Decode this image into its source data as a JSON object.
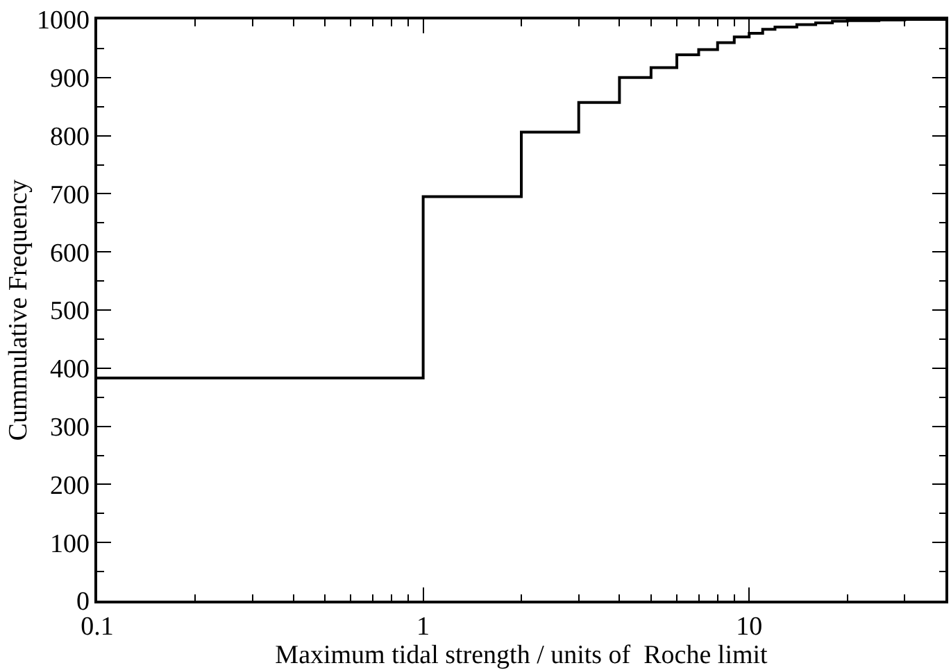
{
  "chart_data": {
    "type": "step",
    "xlabel": "Maximum tidal strength / units of  Roche limit",
    "ylabel": "Cummulative Frequency",
    "x": [
      0.1,
      1,
      2,
      3,
      4,
      5,
      6,
      7,
      8,
      9,
      10,
      11,
      12,
      14,
      16,
      18,
      20,
      25,
      30,
      40
    ],
    "series": [
      {
        "color": "#000000",
        "values": [
          383,
          695,
          806,
          857,
          900,
          917,
          939,
          948,
          960,
          970,
          976,
          983,
          987,
          991,
          994,
          997,
          998,
          999,
          1000,
          1000
        ]
      }
    ],
    "log": "x",
    "xlim": [
      0.1,
      40
    ],
    "ylim": [
      0,
      1000
    ],
    "xticks": [
      0.1,
      {
        "value": 0.2,
        "label": null
      },
      {
        "value": 0.3,
        "label": null
      },
      {
        "value": 0.4,
        "label": null
      },
      {
        "value": 0.5,
        "label": null
      },
      {
        "value": 0.6,
        "label": null
      },
      {
        "value": 0.7,
        "label": null
      },
      {
        "value": 0.8,
        "label": null
      },
      {
        "value": 0.9,
        "label": null
      },
      1,
      {
        "value": 2,
        "label": null
      },
      {
        "value": 3,
        "label": null
      },
      {
        "value": 4,
        "label": null
      },
      {
        "value": 5,
        "label": null
      },
      {
        "value": 6,
        "label": null
      },
      {
        "value": 7,
        "label": null
      },
      {
        "value": 8,
        "label": null
      },
      {
        "value": 9,
        "label": null
      },
      10,
      {
        "value": 20,
        "label": null
      },
      {
        "value": 30,
        "label": null
      }
    ],
    "yticks": [
      0,
      {
        "value": 50,
        "label": null
      },
      100,
      {
        "value": 150,
        "label": null
      },
      200,
      {
        "value": 250,
        "label": null
      },
      300,
      {
        "value": 350,
        "label": null
      },
      400,
      {
        "value": 450,
        "label": null
      },
      500,
      {
        "value": 550,
        "label": null
      },
      600,
      {
        "value": 650,
        "label": null
      },
      700,
      {
        "value": 750,
        "label": null
      },
      800,
      {
        "value": 850,
        "label": null
      },
      900,
      {
        "value": 950,
        "label": null
      },
      1000
    ],
    "marker": "none",
    "line_style": "solid"
  }
}
